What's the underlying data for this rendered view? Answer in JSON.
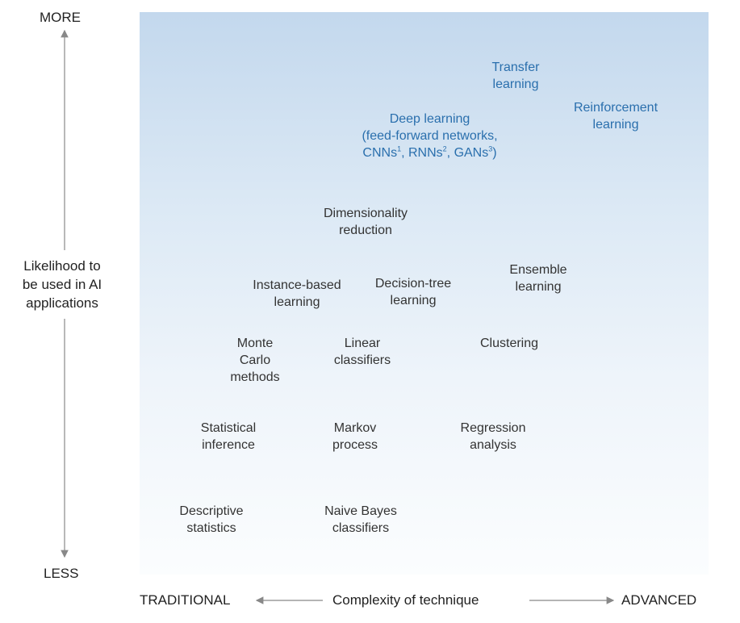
{
  "y_axis": {
    "top_label": "MORE",
    "bottom_label": "LESS",
    "title_lines": [
      "Likelihood to",
      "be used in AI",
      "applications"
    ]
  },
  "x_axis": {
    "left_label": "TRADITIONAL",
    "title": "Complexity of technique",
    "right_label": "ADVANCED"
  },
  "techniques": {
    "transfer": [
      "Transfer",
      "learning"
    ],
    "reinforcement": [
      "Reinforcement",
      "learning"
    ],
    "deep": {
      "line1": "Deep learning",
      "line2": "(feed-forward networks,",
      "cnn": "CNNs",
      "sup1": "1",
      "rnn": ", RNNs",
      "sup2": "2",
      "gan": ", GANs",
      "sup3": "3",
      "close": ")"
    },
    "dimensionality": [
      "Dimensionality",
      "reduction"
    ],
    "ensemble": [
      "Ensemble",
      "learning"
    ],
    "instance": [
      "Instance-based",
      "learning"
    ],
    "decision_tree": [
      "Decision-tree",
      "learning"
    ],
    "monte_carlo": [
      "Monte",
      "Carlo",
      "methods"
    ],
    "linear": [
      "Linear",
      "classifiers"
    ],
    "clustering": [
      "Clustering"
    ],
    "statistical": [
      "Statistical",
      "inference"
    ],
    "markov": [
      "Markov",
      "process"
    ],
    "regression": [
      "Regression",
      "analysis"
    ],
    "descriptive": [
      "Descriptive",
      "statistics"
    ],
    "naive_bayes": [
      "Naive Bayes",
      "classifiers"
    ]
  },
  "colors": {
    "highlight": "#2a6fad",
    "text": "#333333",
    "arrow": "#888888",
    "panel_top": "#c3d8ed",
    "panel_bottom": "#fbfdfe"
  }
}
